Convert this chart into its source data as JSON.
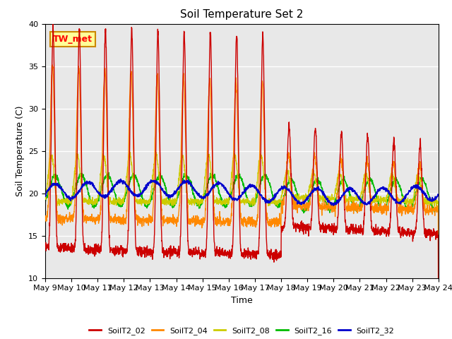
{
  "title": "Soil Temperature Set 2",
  "xlabel": "Time",
  "ylabel": "Soil Temperature (C)",
  "ylim": [
    10,
    40
  ],
  "xlim": [
    0,
    15
  ],
  "x_tick_labels": [
    "May 9",
    "May 10",
    "May 11",
    "May 12",
    "May 13",
    "May 14",
    "May 15",
    "May 16",
    "May 17",
    "May 18",
    "May 19",
    "May 20",
    "May 21",
    "May 22",
    "May 23",
    "May 24"
  ],
  "annotation_text": "TW_met",
  "annotation_bg": "#ffff99",
  "annotation_border": "#cc8800",
  "colors": {
    "SoilT2_02": "#cc0000",
    "SoilT2_04": "#ff8800",
    "SoilT2_08": "#cccc00",
    "SoilT2_16": "#00bb00",
    "SoilT2_32": "#0000cc"
  },
  "bg_color": "#e8e8e8"
}
